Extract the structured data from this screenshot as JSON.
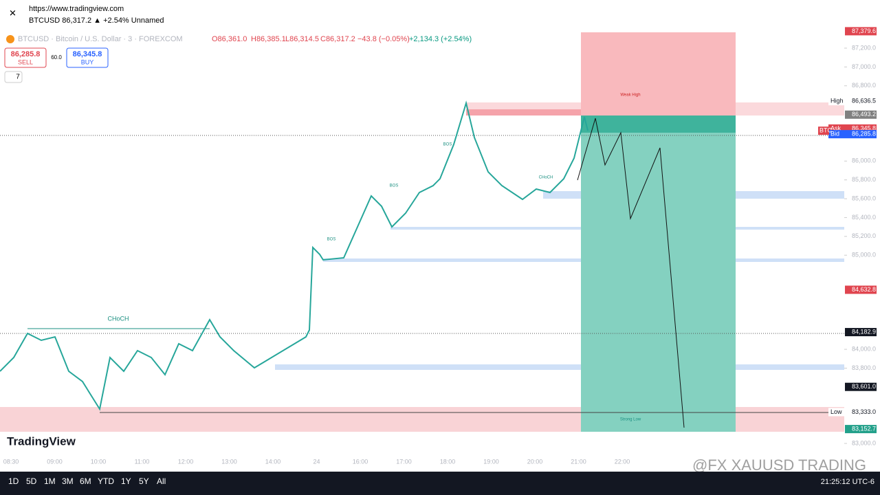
{
  "browser": {
    "url": "https://www.tradingview.com",
    "tab": "BTCUSD 86,317.2 ▲ +2.54% Unnamed"
  },
  "legend": {
    "symbol": "BTCUSD · Bitcoin / U.S. Dollar · 3 · FOREXCOM",
    "open": "O86,361.0",
    "high": "H86,385.1",
    "low": "L86,314.5",
    "close": "C86,317.2",
    "change": "−43.8 (−0.05%)",
    "day_change": "+2,134.3 (+2.54%)"
  },
  "trade": {
    "sell_price": "86,285.8",
    "sell": "SELL",
    "spread": "60.0",
    "buy_price": "86,345.8",
    "buy": "BUY",
    "indicators": "7"
  },
  "price_axis": {
    "range": [
      83000,
      87200
    ],
    "ticks": [
      {
        "value": 87200,
        "label": "87,200.0"
      },
      {
        "value": 87000,
        "label": "87,000.0"
      },
      {
        "value": 86800,
        "label": "86,800.0"
      },
      {
        "value": 86000,
        "label": "86,000.0"
      },
      {
        "value": 85800,
        "label": "85,800.0"
      },
      {
        "value": 85600,
        "label": "85,600.0"
      },
      {
        "value": 85400,
        "label": "85,400.0"
      },
      {
        "value": 85200,
        "label": "85,200.0"
      },
      {
        "value": 85000,
        "label": "85,000.0"
      },
      {
        "value": 84000,
        "label": "84,000.0"
      },
      {
        "value": 83800,
        "label": "83,800.0"
      },
      {
        "value": 83000,
        "label": "83,000.0"
      }
    ],
    "markers": [
      {
        "value": 87379.6,
        "label": "87,379.6",
        "color": "#e0454f"
      },
      {
        "value": 86636.5,
        "label": "86,636.5",
        "color": "#ffffff",
        "tag": "High"
      },
      {
        "value": 86493.2,
        "label": "86,493.2",
        "color": "#808080"
      },
      {
        "value": 86345.8,
        "label": "86,345.8",
        "color": "#e0454f",
        "tag": "Ask"
      },
      {
        "value": 86285.8,
        "label": "86,285.8",
        "color": "#2962ff",
        "tag": "Bid"
      },
      {
        "value": 84632.8,
        "label": "84,632.8",
        "color": "#e0454f"
      },
      {
        "value": 84182.9,
        "label": "84,182.9",
        "color": "#131722"
      },
      {
        "value": 83601.0,
        "label": "83,601.0",
        "color": "#131722"
      },
      {
        "value": 83333.0,
        "label": "83,333.0",
        "color": "#ffffff",
        "tag": "Low"
      },
      {
        "value": 83152.7,
        "label": "83,152.7",
        "color": "#22a08a"
      }
    ],
    "symbol_tag": "BTC"
  },
  "time_axis": [
    "08:30",
    "09:00",
    "10:00",
    "11:00",
    "12:00",
    "13:00",
    "14:00",
    "24",
    "16:00",
    "17:00",
    "18:00",
    "19:00",
    "20:00",
    "21:00",
    "22:00"
  ],
  "annotations": {
    "choch": "CHoCH",
    "bos": "BOS",
    "weak_high": "Weak High",
    "strong_low": "Strong Low"
  },
  "brand": "TradingView",
  "watermark": "@FX XAUUSD TRADING",
  "toolbar": {
    "ranges": [
      "1D",
      "5D",
      "1M",
      "3M",
      "6M",
      "YTD",
      "1Y",
      "5Y",
      "All"
    ],
    "clock": "21:25:12 UTC-6"
  }
}
